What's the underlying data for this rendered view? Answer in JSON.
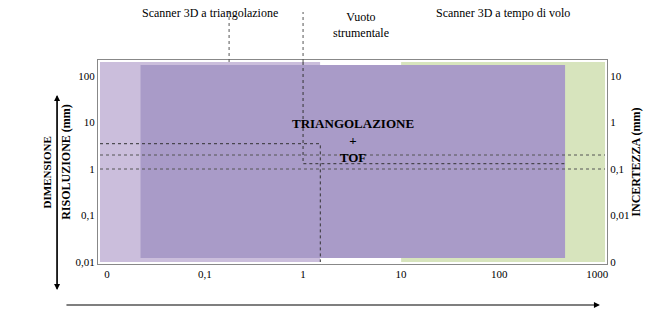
{
  "chart_data": {
    "type": "area",
    "log": true,
    "grid": true,
    "xlim": [
      0.0085,
      1200
    ],
    "xticks": [
      {
        "value": 0.01,
        "label": "0"
      },
      {
        "value": 0.1,
        "label": "0,1"
      },
      1,
      10,
      100,
      1000
    ],
    "ylim": [
      0.01,
      200
    ],
    "yticks": [
      {
        "value": 0.01,
        "label": "0,01"
      },
      {
        "value": 0.1,
        "label": "0,1"
      },
      1,
      10,
      100
    ],
    "y2lim": [
      0.001,
      20
    ],
    "y2ticks": [
      {
        "value": 0.001,
        "label": "0"
      },
      {
        "value": 0.01,
        "label": "0,01"
      },
      {
        "value": 0.1,
        "label": "0,1"
      },
      1,
      10
    ],
    "ylabel": "RISOLUZIONE (mm)",
    "y2label": "INCERTEZZA (mm)",
    "side_label": "DIMENSIONE",
    "series": [
      {
        "name": "Scanner 3D a triangolazione",
        "color": "#cbbedc",
        "x": [
          0.0085,
          1.5
        ],
        "y": [
          0.01,
          200
        ]
      },
      {
        "name": "Vuoto strumentale",
        "color": "#ffffff",
        "x": [
          1.5,
          10
        ],
        "y": [
          0.01,
          200
        ]
      },
      {
        "name": "Scanner 3D a tempo di volo",
        "color": "#d7e4bd",
        "x": [
          10,
          1200
        ],
        "y": [
          0.01,
          200
        ]
      }
    ],
    "overlap": {
      "name": "TRIANGOLAZIONE + TOF",
      "color": "#a99bc8",
      "x": [
        0.022,
        470
      ],
      "y": [
        0.0122,
        172
      ]
    },
    "boundaries": [
      {
        "color": "#333333",
        "line_style": "dot",
        "x": [
          0.0085,
          1.5,
          1.5
        ],
        "y": [
          3.5,
          3.5,
          0.01
        ]
      },
      {
        "color": "#333333",
        "line_style": "dot",
        "x": [
          1,
          1,
          470
        ],
        "y": [
          200,
          1.3,
          1.3
        ]
      }
    ]
  }
}
